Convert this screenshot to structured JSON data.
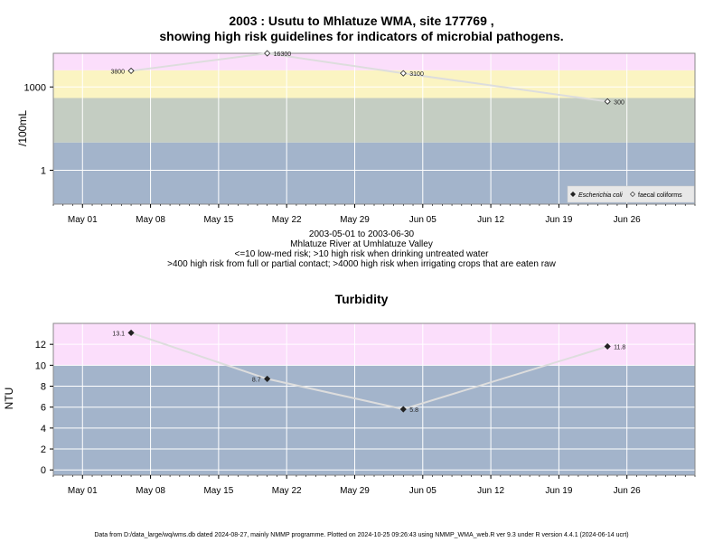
{
  "page": {
    "title_line1": "2003 : Usutu to Mhlatuze WMA, site 177769 ,",
    "title_line2": "showing high risk guidelines for indicators of microbial pathogens.",
    "sub_line1": "2003-05-01 to 2003-06-30",
    "sub_line2": "Mhlatuze River at Umhlatuze Valley",
    "sub_line3": "<=10 low-med risk; >10 high risk when drinking untreated water",
    "sub_line4": ">400 high risk from full or partial contact; >4000 high risk when irrigating crops that are eaten raw",
    "turbidity_title": "Turbidity",
    "footer": "Data from D:/data_large/wq/wms.db dated 2024-08-27, mainly NMMP programme. Plotted on 2024-10-25 09:26:43 using NMMP_WMA_web.R ver 9.3 under R version 4.4.1 (2024-06-14 ucrt)"
  },
  "chart_data": [
    {
      "type": "scatter",
      "ylabel": "/100mL",
      "yscale": "log",
      "ylim": [
        0.06,
        16300
      ],
      "yticks": [
        {
          "v": 1,
          "label": "1"
        },
        {
          "v": 1000,
          "label": "1000"
        }
      ],
      "xlim": [
        "2003-04-28",
        "2003-07-03"
      ],
      "xticks": [
        {
          "date": "2003-05-01",
          "label": "May 01"
        },
        {
          "date": "2003-05-08",
          "label": "May 08"
        },
        {
          "date": "2003-05-15",
          "label": "May 15"
        },
        {
          "date": "2003-05-22",
          "label": "May 22"
        },
        {
          "date": "2003-05-29",
          "label": "May 29"
        },
        {
          "date": "2003-06-05",
          "label": "Jun 05"
        },
        {
          "date": "2003-06-12",
          "label": "Jun 12"
        },
        {
          "date": "2003-06-19",
          "label": "Jun 19"
        },
        {
          "date": "2003-06-26",
          "label": "Jun 26"
        }
      ],
      "bands": [
        {
          "from": 0.06,
          "to": 10,
          "color": "#a3b4cb"
        },
        {
          "from": 10,
          "to": 400,
          "color": "#c4cdc2"
        },
        {
          "from": 400,
          "to": 4000,
          "color": "#fbf4c2"
        },
        {
          "from": 4000,
          "to": 16300,
          "color": "#fbdefb"
        }
      ],
      "series": [
        {
          "name": "faecal coliforms",
          "marker": "open-diamond",
          "points": [
            {
              "date": "2003-05-06",
              "value": 3800,
              "label": "3800",
              "side": "left"
            },
            {
              "date": "2003-05-20",
              "value": 16300,
              "label": "16300",
              "side": "right"
            },
            {
              "date": "2003-06-03",
              "value": 3100,
              "label": "3100",
              "side": "right"
            },
            {
              "date": "2003-06-24",
              "value": 300,
              "label": "300",
              "side": "right"
            }
          ]
        }
      ],
      "legend": {
        "position": "bottom-right",
        "entries": [
          {
            "label": "Escherichia coli",
            "marker": "filled-diamond",
            "italic": true
          },
          {
            "label": "faecal coliforms",
            "marker": "open-diamond",
            "italic": false
          }
        ]
      },
      "grid": true
    },
    {
      "type": "line",
      "title": "Turbidity",
      "ylabel": "NTU",
      "ylim": [
        -0.5,
        14
      ],
      "yticks": [
        {
          "v": 0,
          "label": "0"
        },
        {
          "v": 2,
          "label": "2"
        },
        {
          "v": 4,
          "label": "4"
        },
        {
          "v": 6,
          "label": "6"
        },
        {
          "v": 8,
          "label": "8"
        },
        {
          "v": 10,
          "label": "10"
        },
        {
          "v": 12,
          "label": "12"
        }
      ],
      "xlim": [
        "2003-04-28",
        "2003-07-03"
      ],
      "xticks": [
        {
          "date": "2003-05-01",
          "label": "May 01"
        },
        {
          "date": "2003-05-08",
          "label": "May 08"
        },
        {
          "date": "2003-05-15",
          "label": "May 15"
        },
        {
          "date": "2003-05-22",
          "label": "May 22"
        },
        {
          "date": "2003-05-29",
          "label": "May 29"
        },
        {
          "date": "2003-06-05",
          "label": "Jun 05"
        },
        {
          "date": "2003-06-12",
          "label": "Jun 12"
        },
        {
          "date": "2003-06-19",
          "label": "Jun 19"
        },
        {
          "date": "2003-06-26",
          "label": "Jun 26"
        }
      ],
      "bands": [
        {
          "from": -0.5,
          "to": 10,
          "color": "#a3b4cb"
        },
        {
          "from": 10,
          "to": 14,
          "color": "#fbdefb"
        }
      ],
      "series": [
        {
          "marker": "filled-diamond",
          "points": [
            {
              "date": "2003-05-06",
              "value": 13.1,
              "label": "13.1",
              "side": "left"
            },
            {
              "date": "2003-05-20",
              "value": 8.7,
              "label": "8.7",
              "side": "left"
            },
            {
              "date": "2003-06-03",
              "value": 5.8,
              "label": "5.8",
              "side": "right"
            },
            {
              "date": "2003-06-24",
              "value": 11.8,
              "label": "11.8",
              "side": "right"
            }
          ]
        }
      ],
      "grid": true
    }
  ]
}
